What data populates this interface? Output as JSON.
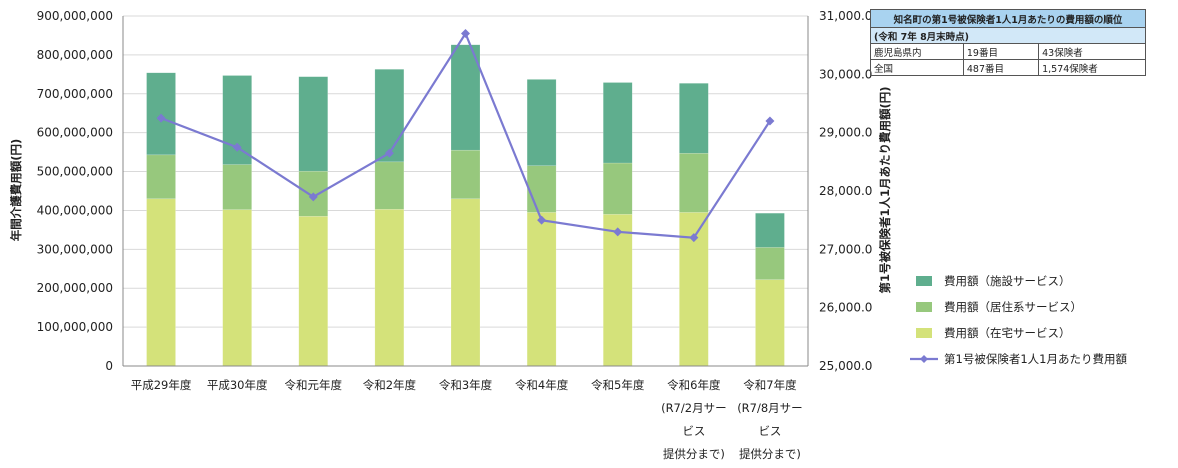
{
  "chart_data": {
    "type": "bar",
    "stacked": true,
    "categories": [
      [
        "平成29年度"
      ],
      [
        "平成30年度"
      ],
      [
        "令和元年度"
      ],
      [
        "令和2年度"
      ],
      [
        "令和3年度"
      ],
      [
        "令和4年度"
      ],
      [
        "令和5年度"
      ],
      [
        "令和6年度",
        "(R7/2月サー",
        "ビス",
        "提供分まで)"
      ],
      [
        "令和7年度",
        "(R7/8月サー",
        "ビス",
        "提供分まで)"
      ]
    ],
    "series": [
      {
        "name": "費用額（在宅サービス）",
        "color": "#d4e27a",
        "values": [
          430000000,
          402000000,
          385000000,
          403000000,
          430000000,
          395000000,
          390000000,
          395000000,
          222000000
        ]
      },
      {
        "name": "費用額（居住系サービス）",
        "color": "#97c87d",
        "values": [
          113000000,
          116000000,
          116000000,
          122000000,
          125000000,
          120000000,
          132000000,
          152000000,
          83000000
        ]
      },
      {
        "name": "費用額（施設サービス）",
        "color": "#5fae8e",
        "values": [
          211000000,
          229000000,
          243000000,
          238000000,
          271000000,
          222000000,
          207000000,
          180000000,
          88000000
        ]
      }
    ],
    "line_series": {
      "name": "第1号被保険者1人1月あたり費用額",
      "color": "#7b7ad1",
      "values": [
        29250,
        28750,
        27900,
        28650,
        30700,
        27500,
        27300,
        27200,
        29200
      ]
    },
    "ylabel": "年間介護費用額(円)",
    "y2label": "第1号被保険者1人1月あたり費用額(円)",
    "ylim": [
      0,
      900000000
    ],
    "y2lim": [
      25000,
      31000
    ],
    "yticks": [
      "0",
      "100,000,000",
      "200,000,000",
      "300,000,000",
      "400,000,000",
      "500,000,000",
      "600,000,000",
      "700,000,000",
      "800,000,000",
      "900,000,000"
    ],
    "y2ticks": [
      "25,000.0",
      "26,000.0",
      "27,000.0",
      "28,000.0",
      "29,000.0",
      "30,000.0",
      "31,000.0"
    ],
    "grid": true,
    "legend_position": "right",
    "legend": [
      {
        "label": "費用額（施設サービス）",
        "type": "bar",
        "color": "#5fae8e"
      },
      {
        "label": "費用額（居住系サービス）",
        "type": "bar",
        "color": "#97c87d"
      },
      {
        "label": "費用額（在宅サービス）",
        "type": "bar",
        "color": "#d4e27a"
      },
      {
        "label": "第1号被保険者1人1月あたり費用額",
        "type": "line",
        "color": "#7b7ad1"
      }
    ]
  },
  "rank_table": {
    "title": "知名町の第1号被保険者1人1月あたりの費用額の順位",
    "as_of": "(令和 7年 8月末時点)",
    "rows": [
      {
        "region": "鹿児島県内",
        "rank": "19番目",
        "total": "43保険者"
      },
      {
        "region": "全国",
        "rank": "487番目",
        "total": "1,574保険者"
      }
    ]
  }
}
